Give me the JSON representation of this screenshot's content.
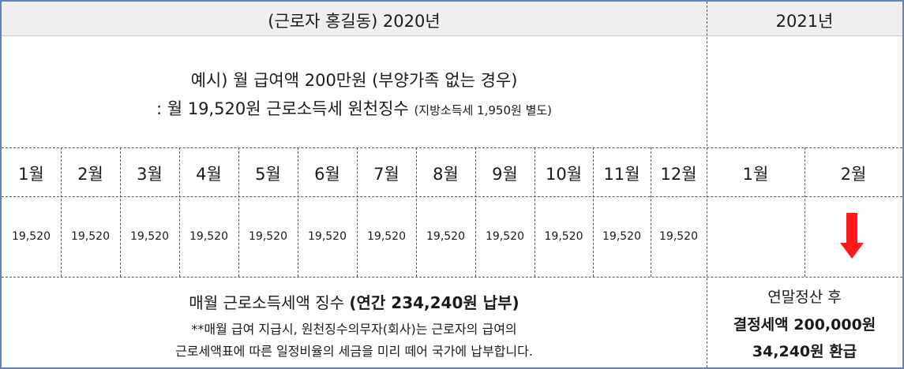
{
  "header": {
    "left_title": "(근로자 홍길동)  2020년",
    "right_title": "2021년"
  },
  "example": {
    "line1": "예시)  월 급여액 200만원 (부양가족 없는 경우)",
    "line2_main": ": 월 19,520원 근로소득세 원천징수",
    "line2_note": "(지방소득세 1,950원 별도)"
  },
  "months_2020": [
    "1월",
    "2월",
    "3월",
    "4월",
    "5월",
    "6월",
    "7월",
    "8월",
    "9월",
    "10월",
    "11월",
    "12월"
  ],
  "months_2021": [
    "1월",
    "2월"
  ],
  "values_2020": [
    "19,520",
    "19,520",
    "19,520",
    "19,520",
    "19,520",
    "19,520",
    "19,520",
    "19,520",
    "19,520",
    "19,520",
    "19,520",
    "19,520"
  ],
  "bottom_left": {
    "title_prefix": "매월 근로소득세액 징수 ",
    "title_bold": "(연간 234,240원 납부)",
    "note1": "**매월 급여 지급시, 원천징수의무자(회사)는 근로자의 급여의",
    "note2": "근로세액표에 따른 일정비율의 세금을 미리 떼어 국가에 납부합니다."
  },
  "bottom_right": {
    "line1": "연말정산 후",
    "line2": "결정세액 200,000원",
    "line3": "34,240원 환급"
  },
  "colors": {
    "border": "#5b83c6",
    "header_bg": "#efefef",
    "arrow": "#ff1a1a"
  },
  "icons": {
    "refund_arrow": "down-arrow-icon"
  }
}
